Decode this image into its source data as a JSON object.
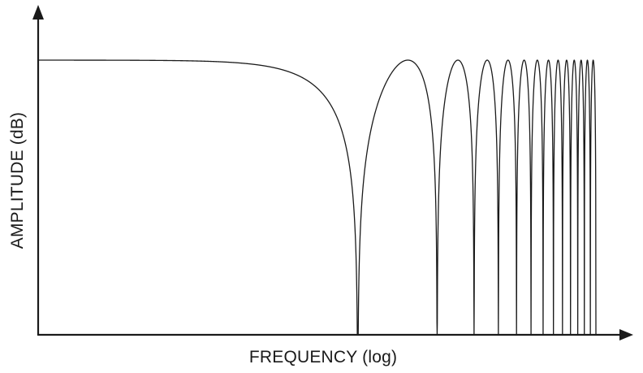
{
  "chart_data": {
    "type": "line",
    "title": "",
    "xlabel": "FREQUENCY (log)",
    "ylabel": "AMPLITUDE (dB)",
    "x_scale": "log",
    "grid": false,
    "legend": "none",
    "line_color": "#1a1a1a",
    "axis_color": "#1a1a1a",
    "notches": [
      1,
      3,
      5,
      7,
      9,
      11,
      13,
      15,
      17,
      19,
      21,
      23,
      25,
      27
    ],
    "series": [
      {
        "values": []
      }
    ]
  }
}
